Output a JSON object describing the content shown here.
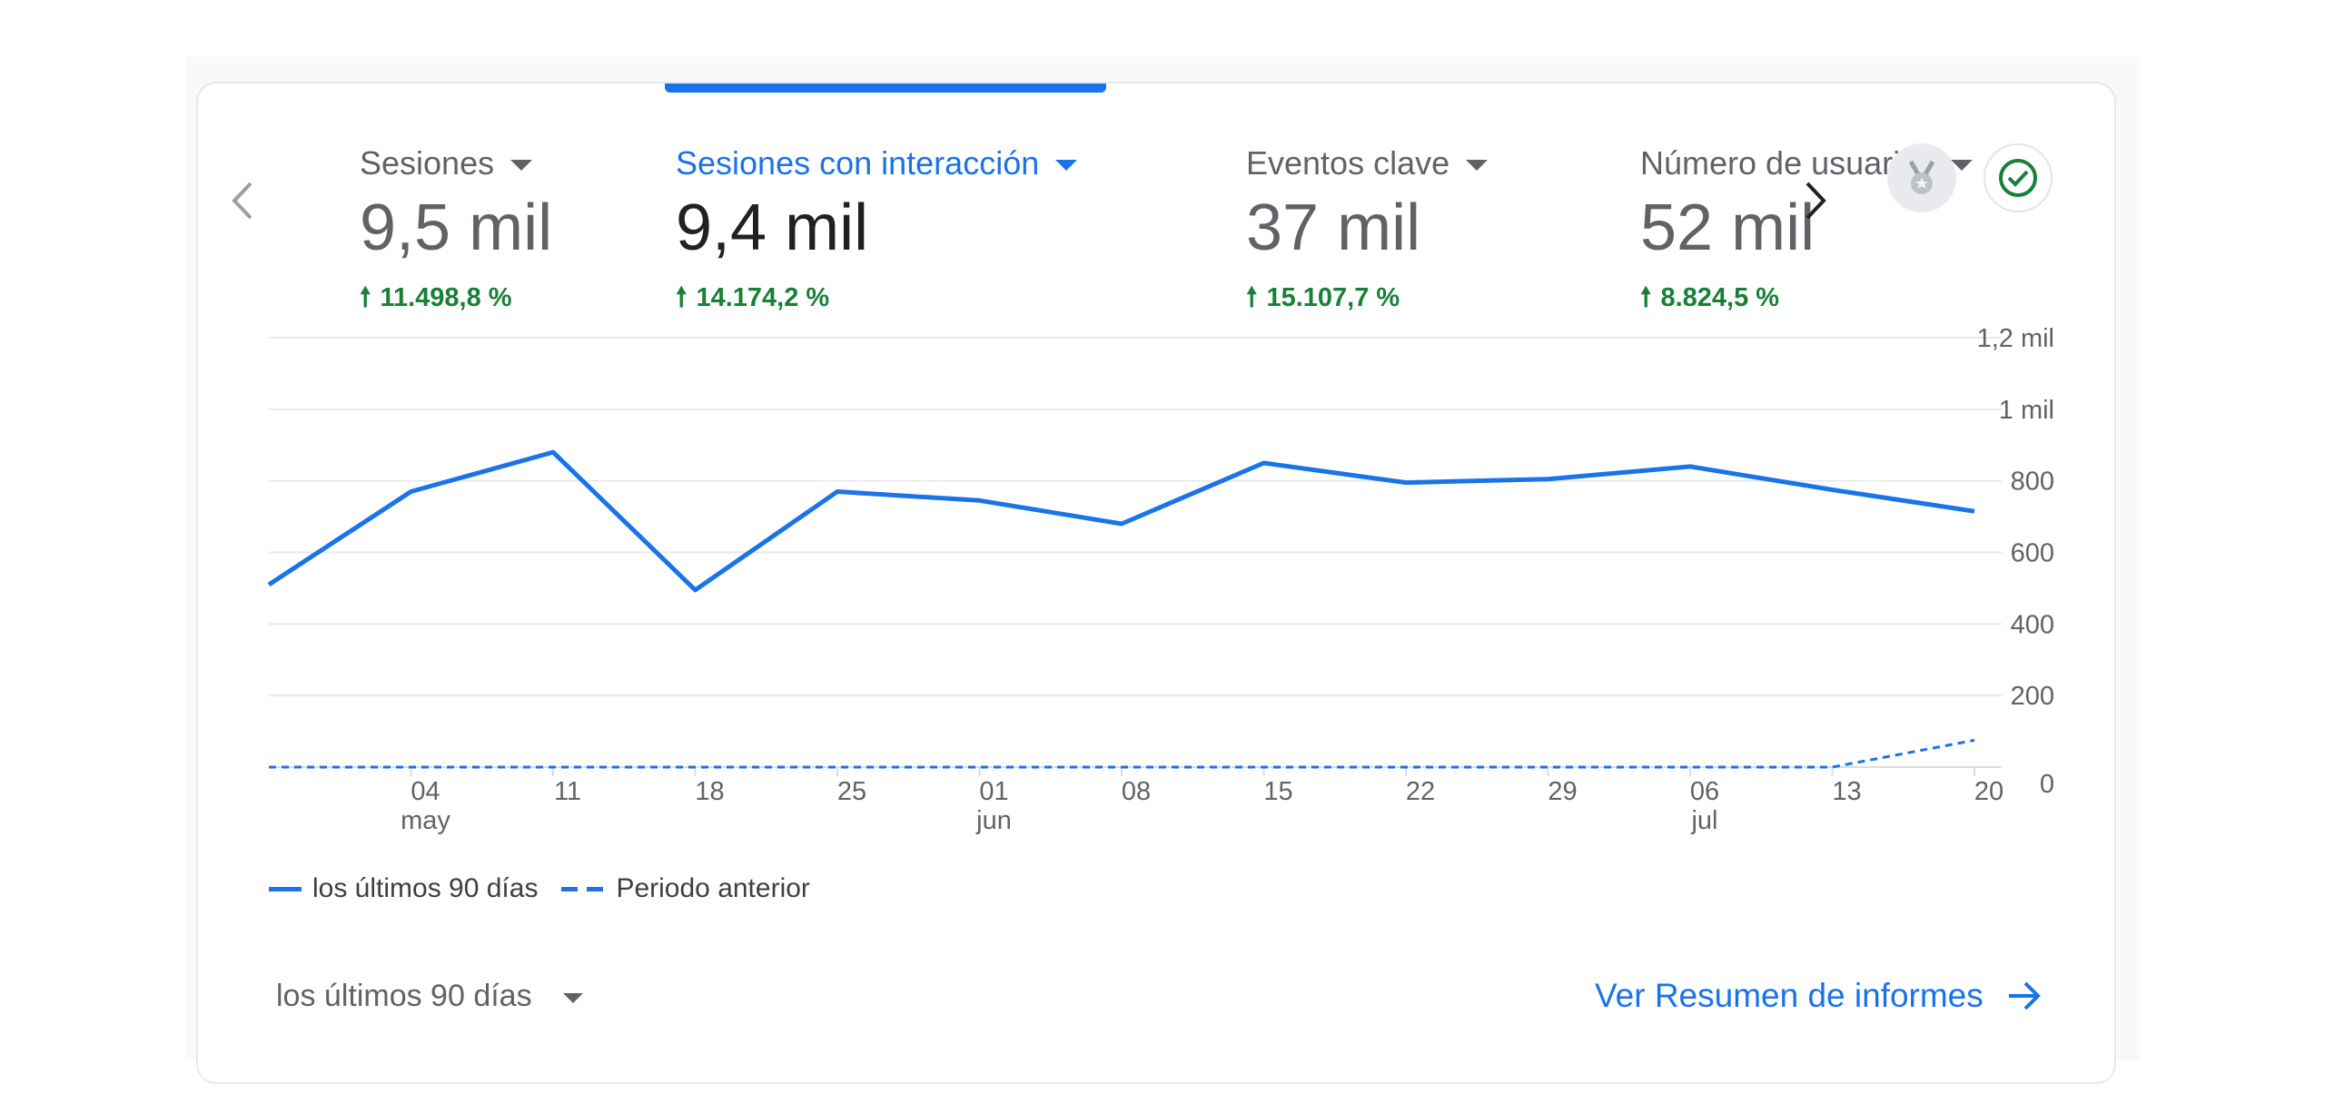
{
  "tabs": [
    {
      "label": "Sesiones",
      "value": "9,5 mil",
      "delta": "11.498,8 %",
      "active": false
    },
    {
      "label": "Sesiones con interacción",
      "value": "9,4 mil",
      "delta": "14.174,2 %",
      "active": true
    },
    {
      "label": "Eventos clave",
      "value": "37 mil",
      "delta": "15.107,7 %",
      "active": false
    },
    {
      "label": "Número de usuarios",
      "value": "52 mil",
      "delta": "8.824,5 %",
      "active": false
    }
  ],
  "icons": {
    "prev": "chevron-left-icon",
    "next": "chevron-right-icon",
    "medal": "medal-icon",
    "check": "check-circle-icon"
  },
  "colors": {
    "accent": "#1a73e8",
    "positive": "#188038",
    "text": "#3c4043",
    "muted": "#5f6368"
  },
  "chart_data": {
    "type": "line",
    "x_ticks": [
      {
        "day": "04",
        "month": "may"
      },
      {
        "day": "11",
        "month": ""
      },
      {
        "day": "18",
        "month": ""
      },
      {
        "day": "25",
        "month": ""
      },
      {
        "day": "01",
        "month": "jun"
      },
      {
        "day": "08",
        "month": ""
      },
      {
        "day": "15",
        "month": ""
      },
      {
        "day": "22",
        "month": ""
      },
      {
        "day": "29",
        "month": ""
      },
      {
        "day": "06",
        "month": "jul"
      },
      {
        "day": "13",
        "month": ""
      },
      {
        "day": "20",
        "month": ""
      }
    ],
    "y_ticks": [
      "0",
      "200",
      "400",
      "600",
      "800",
      "1 mil",
      "1,2 mil"
    ],
    "ylim": [
      0,
      1200
    ],
    "grid": true,
    "legend_position": "bottom-left",
    "series": [
      {
        "name": "los últimos 90 días",
        "style": "solid",
        "x": [
          "27 abr",
          "04 may",
          "11 may",
          "18 may",
          "25 may",
          "01 jun",
          "08 jun",
          "15 jun",
          "22 jun",
          "29 jun",
          "06 jul",
          "13 jul",
          "20 jul"
        ],
        "values": [
          510,
          770,
          880,
          495,
          770,
          745,
          680,
          850,
          795,
          805,
          840,
          775,
          715
        ]
      },
      {
        "name": "Periodo anterior",
        "style": "dashed",
        "x": [
          "27 abr",
          "04 may",
          "11 may",
          "18 may",
          "25 may",
          "01 jun",
          "08 jun",
          "15 jun",
          "22 jun",
          "29 jun",
          "06 jul",
          "13 jul",
          "20 jul"
        ],
        "values": [
          0,
          0,
          0,
          0,
          0,
          0,
          0,
          0,
          0,
          0,
          0,
          0,
          75
        ]
      }
    ]
  },
  "footer": {
    "range_label": "los últimos 90 días",
    "report_link": "Ver Resumen de informes"
  }
}
